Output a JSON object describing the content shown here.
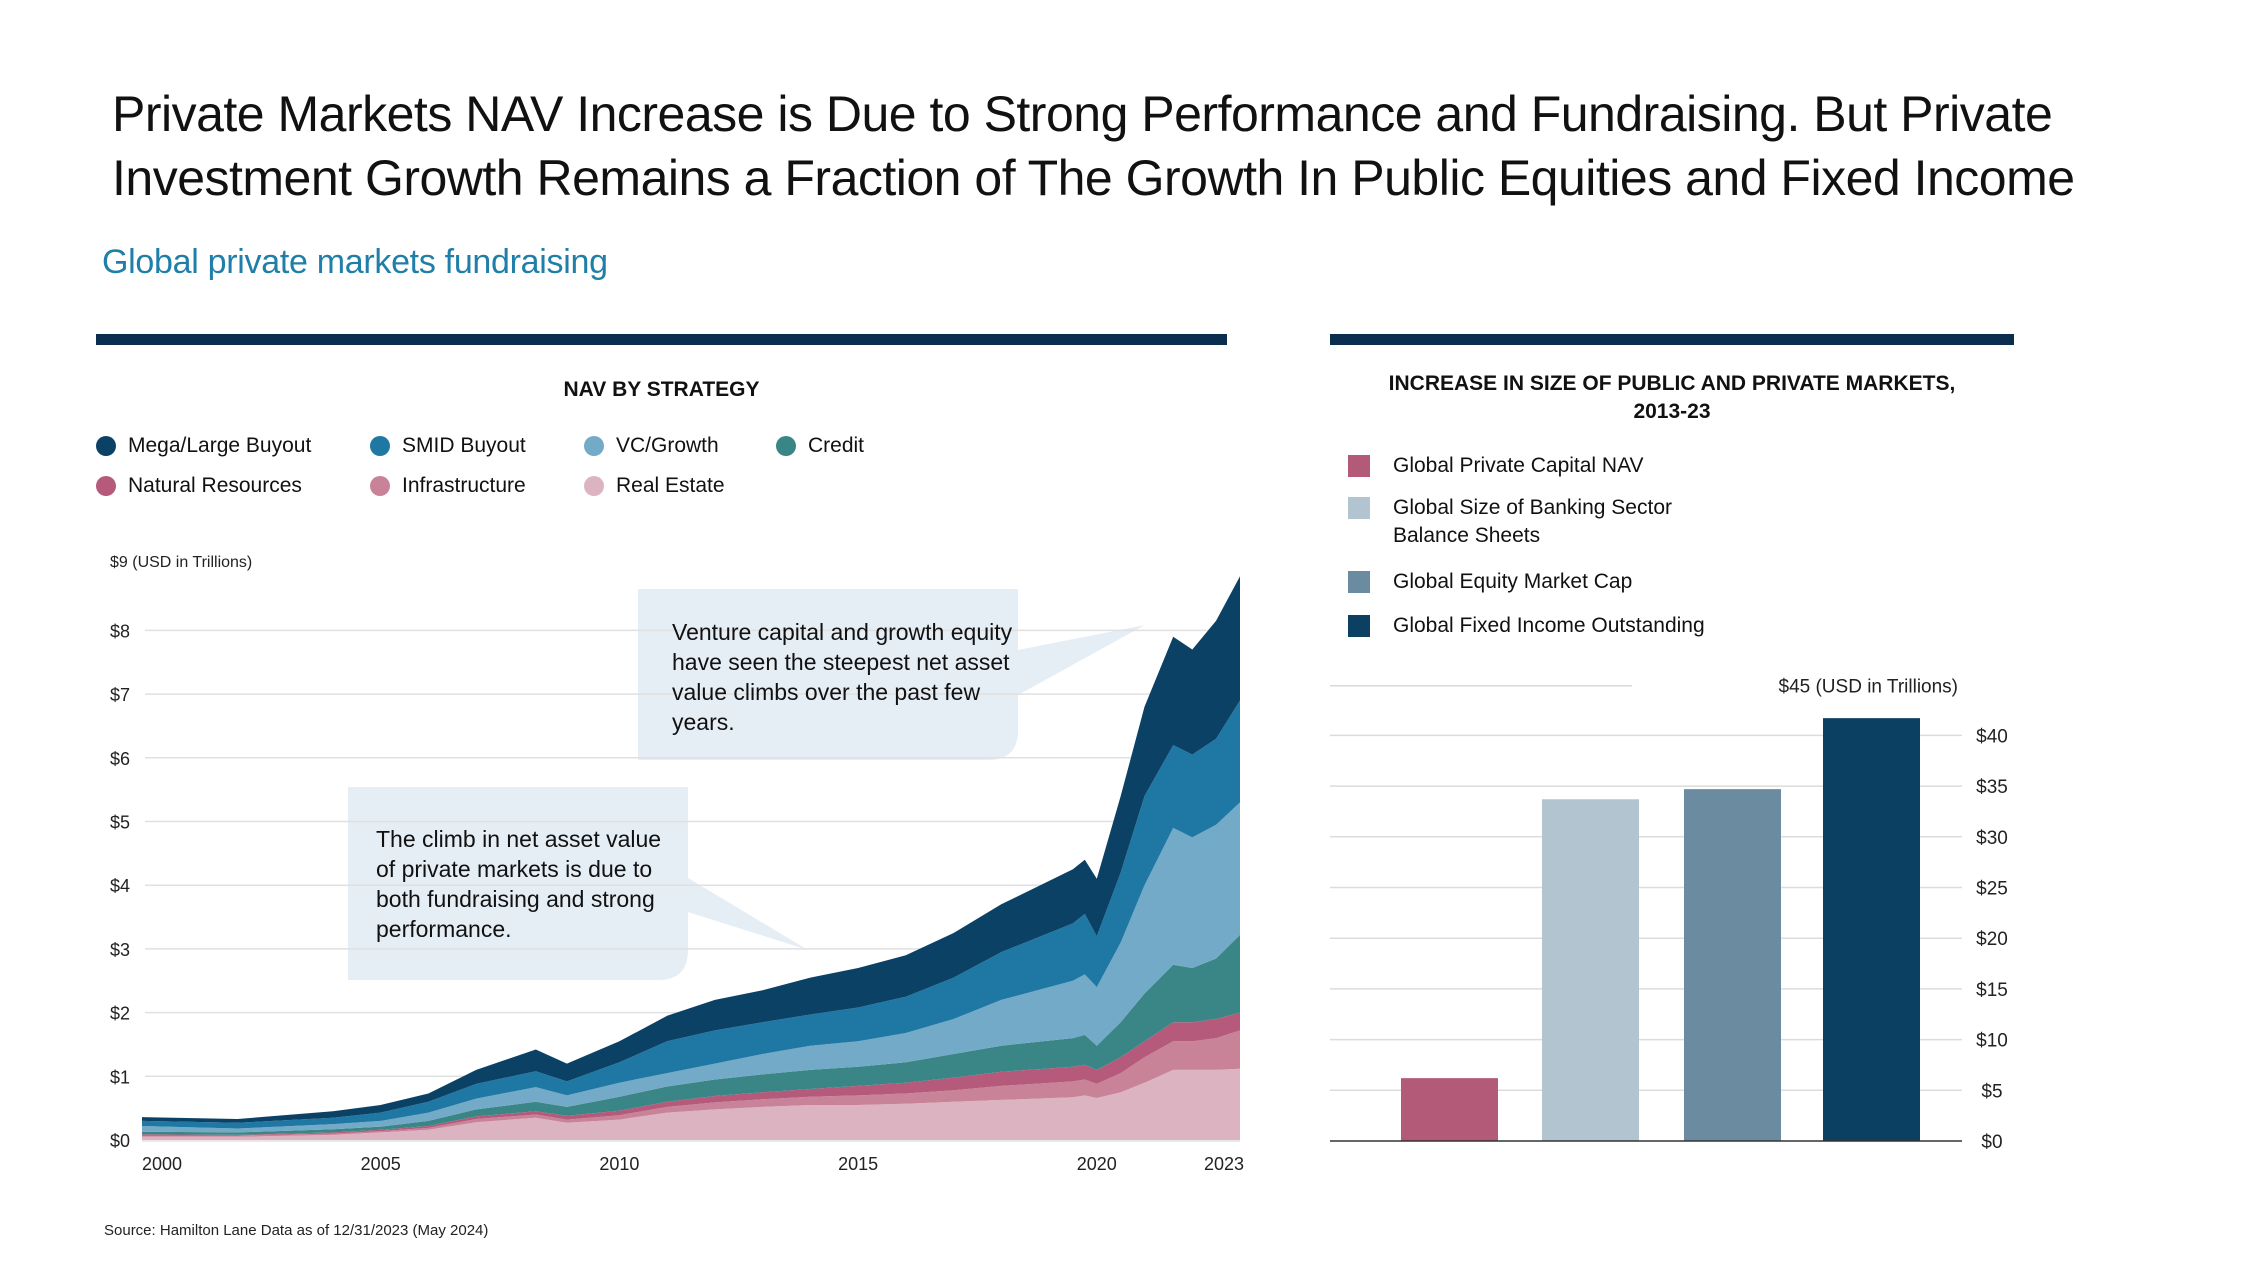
{
  "title": "Private Markets NAV Increase is Due to Strong Performance and Fundraising. But Private Investment Growth Remains a Fraction of The Growth In Public Equities and Fixed Income",
  "subtitle": "Global private markets fundraising",
  "source": "Source: Hamilton Lane Data as of 12/31/2023 (May 2024)",
  "colors": {
    "rule": "#0b2e4e",
    "subtitle": "#1f7fa8",
    "callout_bg": "#e5edf5",
    "grid": "#dcdcdc"
  },
  "callouts": [
    {
      "text": "Venture capital and growth equity have seen the steepest net asset value climbs over the past few years."
    },
    {
      "text": "The climb in net asset value of private markets is due to both fundraising and strong performance."
    }
  ],
  "chart_data": [
    {
      "type": "area",
      "stacked": true,
      "title": "NAV BY STRATEGY",
      "ylabel": "$9 (USD in Trillions)",
      "ylim": [
        0,
        9
      ],
      "y_ticks": [
        "$0",
        "$1",
        "$2",
        "$3",
        "$4",
        "$5",
        "$6",
        "$7",
        "$8"
      ],
      "x_ticks": [
        "2000",
        "2005",
        "2010",
        "2015",
        "2020",
        "2023"
      ],
      "x_tick_values": [
        2000,
        2005,
        2010,
        2015,
        2020,
        2023
      ],
      "xlim": [
        2000,
        2023
      ],
      "grid": true,
      "legend_position": "top-left",
      "x": [
        2000,
        2002,
        2004,
        2005,
        2006,
        2007,
        2008.25,
        2008.9,
        2010,
        2011,
        2012,
        2013,
        2014,
        2015,
        2016,
        2017,
        2018,
        2019.5,
        2019.75,
        2020,
        2020.5,
        2021,
        2021.6,
        2022,
        2022.5,
        2023
      ],
      "series": [
        {
          "name": "Real Estate",
          "color": "#dcb3c1",
          "values": [
            0.05,
            0.05,
            0.08,
            0.12,
            0.16,
            0.28,
            0.35,
            0.27,
            0.32,
            0.43,
            0.48,
            0.52,
            0.55,
            0.55,
            0.57,
            0.6,
            0.63,
            0.67,
            0.7,
            0.66,
            0.75,
            0.9,
            1.1,
            1.1,
            1.1,
            1.12
          ]
        },
        {
          "name": "Infrastructure",
          "color": "#c98399",
          "values": [
            0.02,
            0.02,
            0.02,
            0.02,
            0.03,
            0.05,
            0.05,
            0.05,
            0.07,
            0.09,
            0.11,
            0.12,
            0.13,
            0.15,
            0.16,
            0.18,
            0.22,
            0.25,
            0.25,
            0.22,
            0.3,
            0.4,
            0.45,
            0.45,
            0.5,
            0.6
          ]
        },
        {
          "name": "Natural Resources",
          "color": "#b55a7b",
          "values": [
            0.02,
            0.01,
            0.02,
            0.02,
            0.03,
            0.04,
            0.05,
            0.06,
            0.07,
            0.08,
            0.1,
            0.11,
            0.12,
            0.15,
            0.17,
            0.2,
            0.22,
            0.23,
            0.23,
            0.22,
            0.25,
            0.25,
            0.3,
            0.3,
            0.3,
            0.28
          ]
        },
        {
          "name": "Credit",
          "color": "#3a8686",
          "values": [
            0.04,
            0.04,
            0.05,
            0.05,
            0.08,
            0.11,
            0.15,
            0.14,
            0.22,
            0.24,
            0.26,
            0.28,
            0.3,
            0.3,
            0.32,
            0.37,
            0.41,
            0.45,
            0.47,
            0.38,
            0.55,
            0.75,
            0.9,
            0.85,
            0.95,
            1.22
          ]
        },
        {
          "name": "VC/Growth",
          "color": "#73aac8",
          "values": [
            0.09,
            0.06,
            0.08,
            0.09,
            0.13,
            0.17,
            0.23,
            0.18,
            0.22,
            0.21,
            0.25,
            0.32,
            0.38,
            0.4,
            0.46,
            0.55,
            0.72,
            0.9,
            0.95,
            0.92,
            1.25,
            1.7,
            2.15,
            2.05,
            2.1,
            2.08
          ]
        },
        {
          "name": "SMID Buyout",
          "color": "#1f78a4",
          "values": [
            0.08,
            0.09,
            0.1,
            0.13,
            0.17,
            0.23,
            0.25,
            0.22,
            0.32,
            0.5,
            0.52,
            0.5,
            0.49,
            0.53,
            0.57,
            0.65,
            0.75,
            0.9,
            0.95,
            0.8,
            1.1,
            1.4,
            1.3,
            1.3,
            1.35,
            1.6
          ]
        },
        {
          "name": "Mega/Large Buyout",
          "color": "#0c4166",
          "values": [
            0.06,
            0.06,
            0.1,
            0.12,
            0.13,
            0.22,
            0.34,
            0.28,
            0.33,
            0.4,
            0.48,
            0.5,
            0.58,
            0.62,
            0.65,
            0.7,
            0.75,
            0.85,
            0.85,
            0.9,
            1.2,
            1.4,
            1.7,
            1.65,
            1.85,
            1.95
          ]
        }
      ],
      "legend_order": [
        "Mega/Large Buyout",
        "SMID Buyout",
        "VC/Growth",
        "Credit",
        "Natural Resources",
        "Infrastructure",
        "Real Estate"
      ]
    },
    {
      "type": "bar",
      "title": "INCREASE IN SIZE OF PUBLIC AND PRIVATE MARKETS, 2013-23",
      "title_lines": [
        "INCREASE IN SIZE OF PUBLIC AND PRIVATE MARKETS,",
        "2013-23"
      ],
      "ylabel": "$45 (USD in Trillions)",
      "ylim": [
        0,
        45
      ],
      "y_ticks": [
        "$0",
        "$5",
        "$10",
        "$15",
        "$20",
        "$25",
        "$30",
        "$35",
        "$40"
      ],
      "y_tick_values": [
        0,
        5,
        10,
        15,
        20,
        25,
        30,
        35,
        40
      ],
      "grid": true,
      "legend_position": "top-left",
      "categories": [
        "Global Private Capital NAV",
        "Global Size of Banking Sector Balance Sheets",
        "Global Equity Market Cap",
        "Global Fixed Income Outstanding"
      ],
      "legend_lines": [
        [
          "Global Private Capital NAV"
        ],
        [
          "Global Size of Banking Sector",
          "Balance Sheets"
        ],
        [
          "Global Equity Market Cap"
        ],
        [
          "Global Fixed Income Outstanding"
        ]
      ],
      "values": [
        6.2,
        33.7,
        34.7,
        41.7
      ],
      "colors": [
        "#b35a78",
        "#b2c4d0",
        "#6b8ca0",
        "#0c4062"
      ]
    }
  ]
}
